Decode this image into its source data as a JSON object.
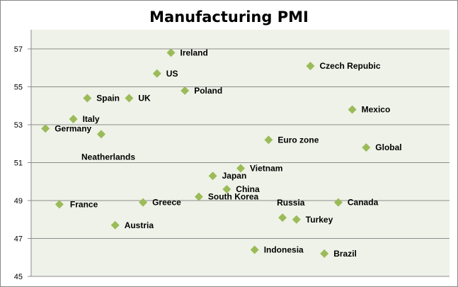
{
  "chart_data": {
    "type": "scatter",
    "title": "Manufacturing PMI",
    "xlabel": "",
    "ylabel": "",
    "ylim": [
      45,
      57
    ],
    "yticks": [
      45,
      47,
      49,
      51,
      53,
      55,
      57
    ],
    "xlim": [
      0,
      30
    ],
    "x_axis_visible": false,
    "grid": "horizontal",
    "legend": "none",
    "colors": {
      "marker": "#9BBB59",
      "plot_bg": "#EFF2E8",
      "grid": "#8C8C8C"
    },
    "points": [
      {
        "label": "Germany",
        "x": 1,
        "y": 52.8,
        "label_pos": "right"
      },
      {
        "label": "France",
        "x": 2,
        "y": 48.8,
        "label_pos": "right-far"
      },
      {
        "label": "Italy",
        "x": 3,
        "y": 53.3,
        "label_pos": "right"
      },
      {
        "label": "Spain",
        "x": 4,
        "y": 54.4,
        "label_pos": "right"
      },
      {
        "label": "Neatherlands",
        "x": 5,
        "y": 52.5,
        "label_pos": "below"
      },
      {
        "label": "Austria",
        "x": 6,
        "y": 47.7,
        "label_pos": "right"
      },
      {
        "label": "UK",
        "x": 7,
        "y": 54.4,
        "label_pos": "right"
      },
      {
        "label": "Greece",
        "x": 8,
        "y": 48.9,
        "label_pos": "right"
      },
      {
        "label": "US",
        "x": 9,
        "y": 55.7,
        "label_pos": "right"
      },
      {
        "label": "Ireland",
        "x": 10,
        "y": 56.8,
        "label_pos": "right"
      },
      {
        "label": "Poland",
        "x": 11,
        "y": 54.8,
        "label_pos": "right"
      },
      {
        "label": "South Korea",
        "x": 12,
        "y": 49.2,
        "label_pos": "right"
      },
      {
        "label": "Japan",
        "x": 13,
        "y": 50.3,
        "label_pos": "right"
      },
      {
        "label": "China",
        "x": 14,
        "y": 49.6,
        "label_pos": "right"
      },
      {
        "label": "Vietnam",
        "x": 15,
        "y": 50.7,
        "label_pos": "right"
      },
      {
        "label": "Indonesia",
        "x": 16,
        "y": 46.4,
        "label_pos": "right"
      },
      {
        "label": "Euro zone",
        "x": 17,
        "y": 52.2,
        "label_pos": "right"
      },
      {
        "label": "Russia",
        "x": 18,
        "y": 48.1,
        "label_pos": "above"
      },
      {
        "label": "Turkey",
        "x": 19,
        "y": 48.0,
        "label_pos": "right"
      },
      {
        "label": "Czech Repubic",
        "x": 20,
        "y": 56.1,
        "label_pos": "right"
      },
      {
        "label": "Brazil",
        "x": 21,
        "y": 46.2,
        "label_pos": "right"
      },
      {
        "label": "Canada",
        "x": 22,
        "y": 48.9,
        "label_pos": "right"
      },
      {
        "label": "Mexico",
        "x": 23,
        "y": 53.8,
        "label_pos": "right"
      },
      {
        "label": "Global",
        "x": 24,
        "y": 51.8,
        "label_pos": "right"
      }
    ]
  }
}
